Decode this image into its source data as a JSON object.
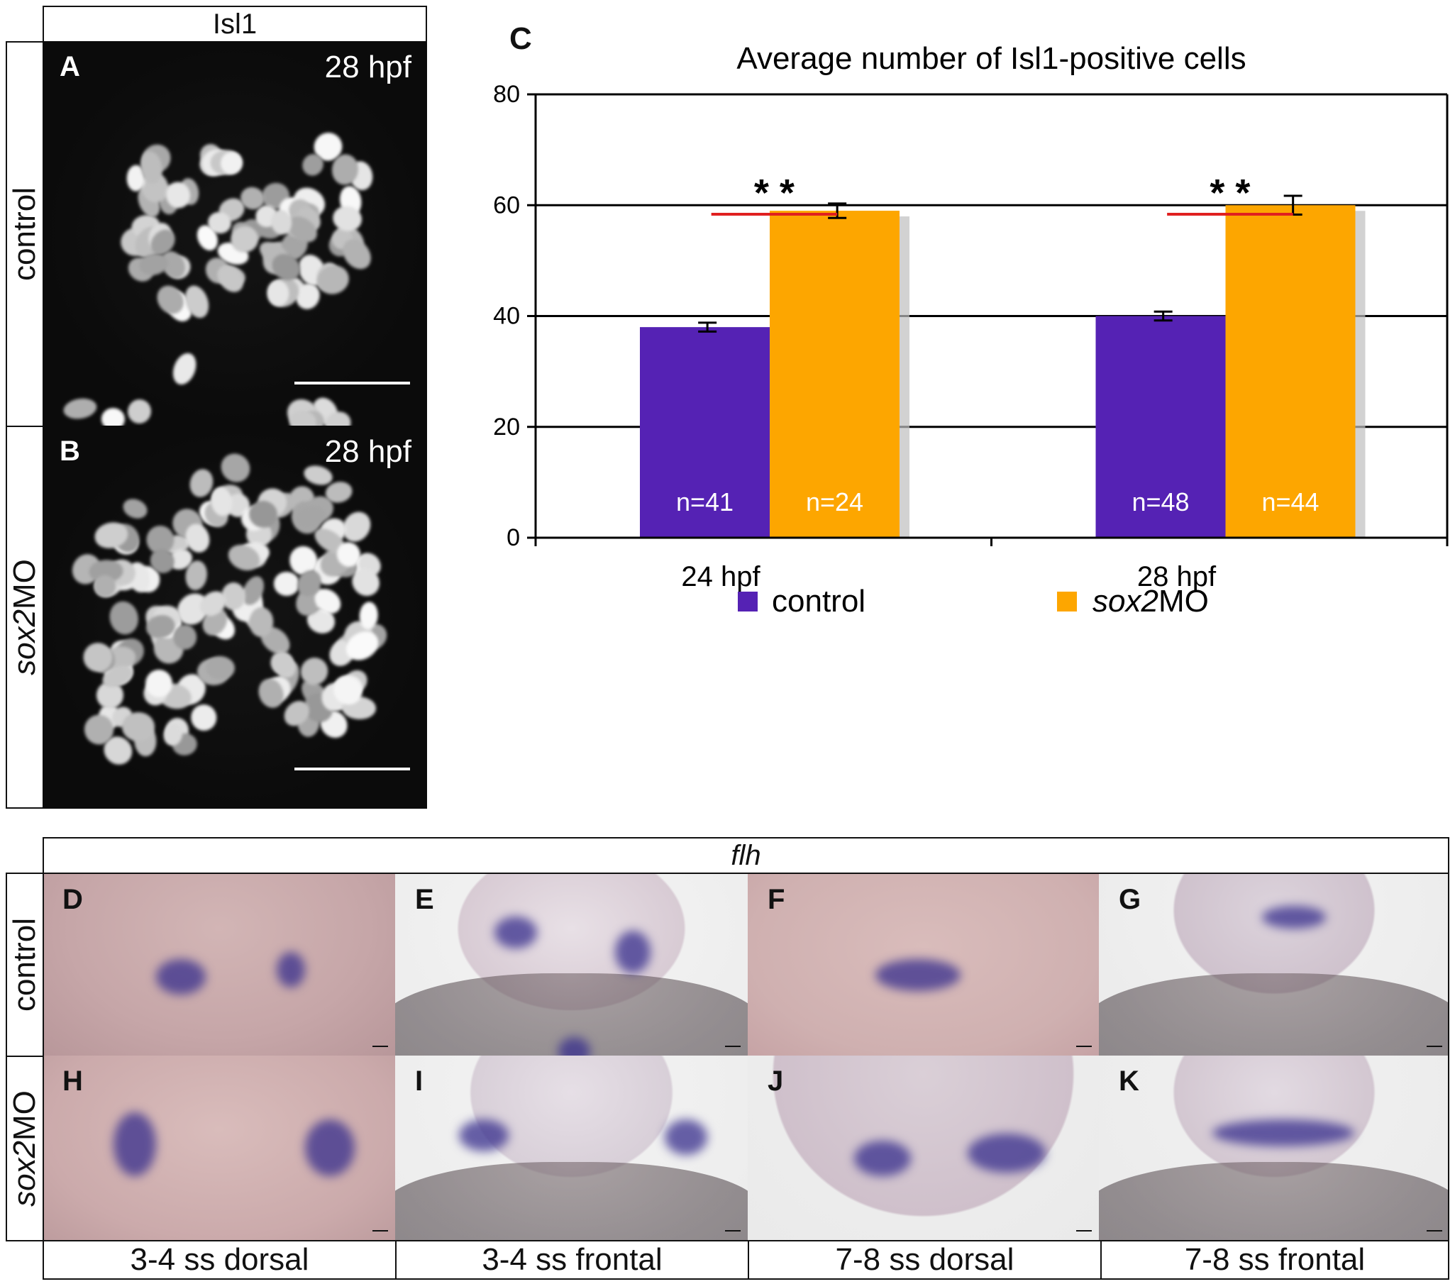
{
  "panel_top_left": {
    "header": "Isl1",
    "row_labels": [
      "control",
      "sox2MO"
    ],
    "row_label_italic_part": "sox2",
    "panels": [
      {
        "letter": "A",
        "time": "28 hpf"
      },
      {
        "letter": "B",
        "time": "28 hpf"
      }
    ]
  },
  "panel_c": {
    "letter": "C"
  },
  "chart_data": {
    "type": "bar",
    "title": "Average number of Isl1-positive cells",
    "categories": [
      "24 hpf",
      "28 hpf"
    ],
    "series": [
      {
        "name": "control",
        "values": [
          38,
          40
        ],
        "errors": [
          0.8,
          0.8
        ],
        "n_labels": [
          "n=41",
          "n=48"
        ],
        "color": "#5522b4"
      },
      {
        "name": "sox2MO",
        "name_italic": "sox2",
        "name_rest": "MO",
        "values": [
          59,
          60
        ],
        "errors": [
          1.3,
          1.7
        ],
        "n_labels": [
          "n=24",
          "n=44"
        ],
        "color": "#fda600"
      }
    ],
    "significance": [
      "* *",
      "* *"
    ],
    "significance_line_color": "#e02020",
    "ylim": [
      0,
      80
    ],
    "yticks": [
      0,
      20,
      40,
      60,
      80
    ],
    "grid": true,
    "legend_position": "bottom"
  },
  "panel_bottom": {
    "header_gene": "flh",
    "row_labels": [
      "control",
      "sox2MO"
    ],
    "row_label_italic_part": "sox2",
    "letters_top": [
      "D",
      "E",
      "F",
      "G"
    ],
    "letters_bottom": [
      "H",
      "I",
      "J",
      "K"
    ],
    "captions": [
      "3-4 ss dorsal",
      "3-4 ss frontal",
      "7-8 ss dorsal",
      "7-8 ss frontal"
    ]
  }
}
